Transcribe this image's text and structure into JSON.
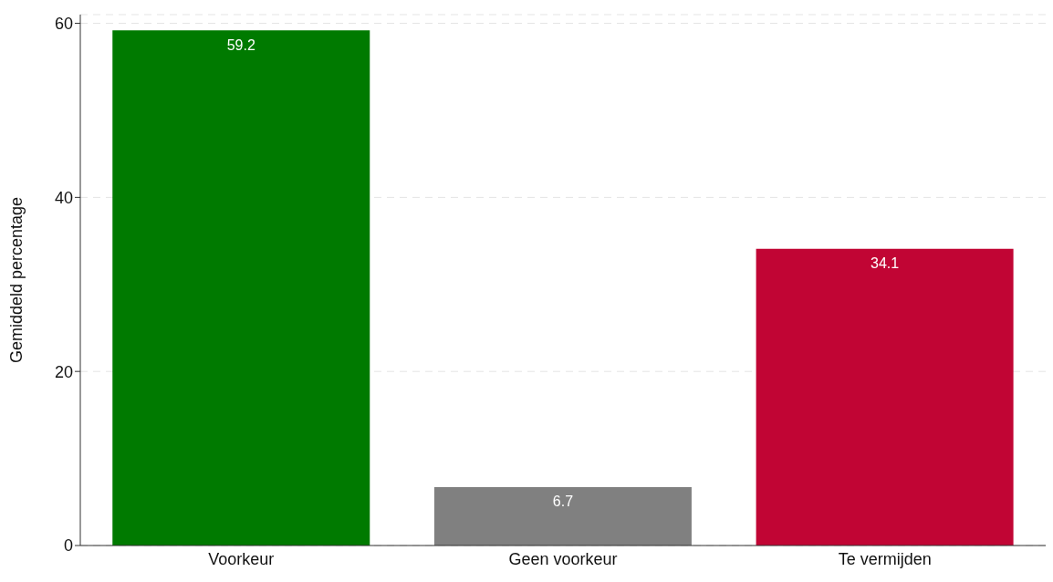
{
  "chart_data": {
    "type": "bar",
    "ylabel": "Gemiddeld percentage",
    "categories": [
      "Voorkeur",
      "Geen voorkeur",
      "Te vermijden"
    ],
    "values": [
      59.2,
      6.7,
      34.1
    ],
    "colors": [
      "#007a00",
      "#808080",
      "#c10534"
    ],
    "ylim": [
      0,
      61
    ],
    "yticks": [
      0,
      20,
      40,
      60
    ],
    "grid": "y",
    "data_labels": true
  }
}
